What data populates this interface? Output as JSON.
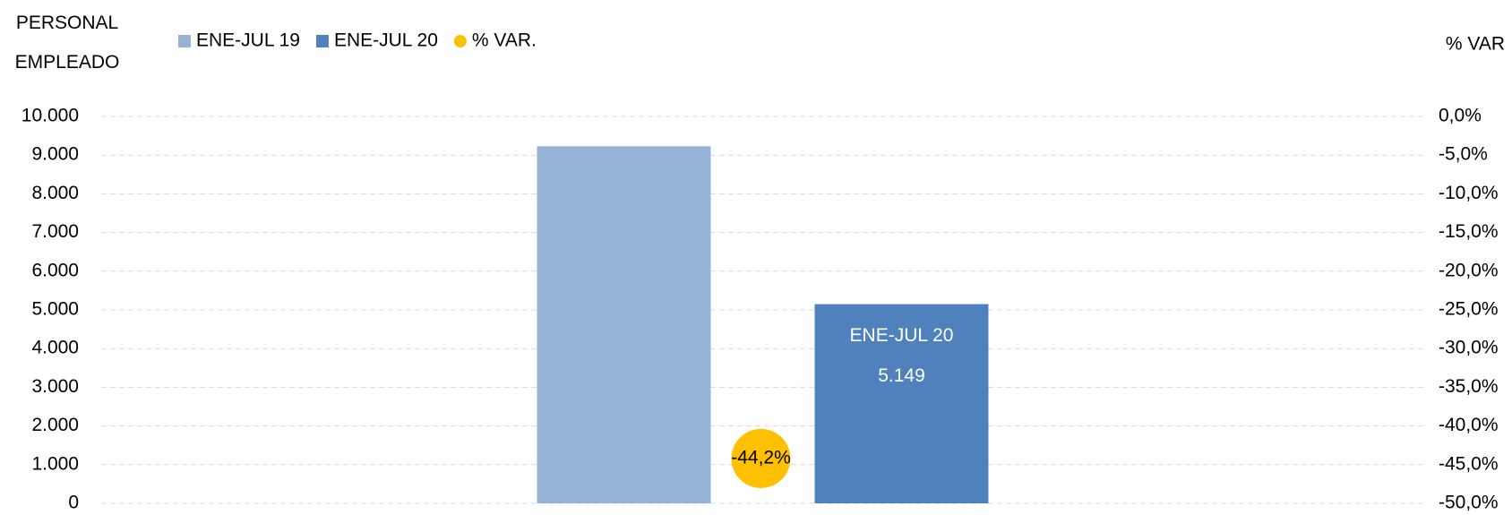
{
  "chart_data": {
    "type": "bar",
    "y_label": "PERSONAL EMPLEADO",
    "y2_label": "% VAR",
    "categories": [
      null
    ],
    "series": [
      {
        "name": "ENE-JUL 19",
        "color": "#95b3d7",
        "values": [
          9230
        ]
      },
      {
        "name": "ENE-JUL 20",
        "color": "#4f81bd",
        "values": [
          5149
        ],
        "value_labels": [
          "5.149"
        ]
      },
      {
        "name": "% VAR.",
        "type": "scatter",
        "axis": "y2",
        "color": "#ffc000",
        "values": [
          -44.2
        ],
        "value_labels": [
          "-44,2%"
        ]
      }
    ],
    "ylim": [
      0,
      10000
    ],
    "yticks": [
      0,
      {
        "value": 1000,
        "label": "1.000"
      },
      {
        "value": 2000,
        "label": "2.000"
      },
      {
        "value": 3000,
        "label": "3.000"
      },
      {
        "value": 4000,
        "label": "4.000"
      },
      {
        "value": 5000,
        "label": "5.000"
      },
      {
        "value": 6000,
        "label": "6.000"
      },
      {
        "value": 7000,
        "label": "7.000"
      },
      {
        "value": 8000,
        "label": "8.000"
      },
      {
        "value": 9000,
        "label": "9.000"
      },
      {
        "value": 10000,
        "label": "10.000"
      }
    ],
    "y2lim": [
      -50,
      0
    ],
    "y2ticks": [
      {
        "value": -50,
        "label": "-50,0%"
      },
      {
        "value": -45,
        "label": "-45,0%"
      },
      {
        "value": -40,
        "label": "-40,0%"
      },
      {
        "value": -35,
        "label": "-35,0%"
      },
      {
        "value": -30,
        "label": "-30,0%"
      },
      {
        "value": -25,
        "label": "-25,0%"
      },
      {
        "value": -20,
        "label": "-20,0%"
      },
      {
        "value": -15,
        "label": "-15,0%"
      },
      {
        "value": -10,
        "label": "-10,0%"
      },
      {
        "value": -5,
        "label": "-5,0%"
      },
      {
        "value": 0,
        "label": "0,0%"
      }
    ],
    "grid": true,
    "legend": "top"
  }
}
